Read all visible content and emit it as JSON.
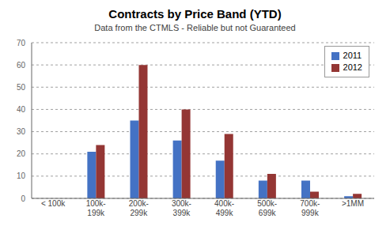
{
  "chart_data": {
    "type": "bar",
    "title": "Contracts by Price Band (YTD)",
    "subtitle": "Data from the CTMLS - Reliable but not Guaranteed",
    "categories": [
      "< 100k",
      "100k-\n199k",
      "200k-\n299k",
      "300k-\n399k",
      "400k-\n499k",
      "500k-\n699k",
      "700k-\n999k",
      ">1MM"
    ],
    "series": [
      {
        "name": "2011",
        "color": "#4472C4",
        "values": [
          0,
          21,
          35,
          26,
          17,
          8,
          8,
          1
        ]
      },
      {
        "name": "2012",
        "color": "#943634",
        "values": [
          0,
          24,
          60,
          40,
          29,
          11,
          3,
          2
        ]
      }
    ],
    "ylim": [
      0,
      70
    ],
    "yticks": [
      0,
      10,
      20,
      30,
      40,
      50,
      60,
      70
    ],
    "grid": true,
    "legend": "upper right"
  }
}
